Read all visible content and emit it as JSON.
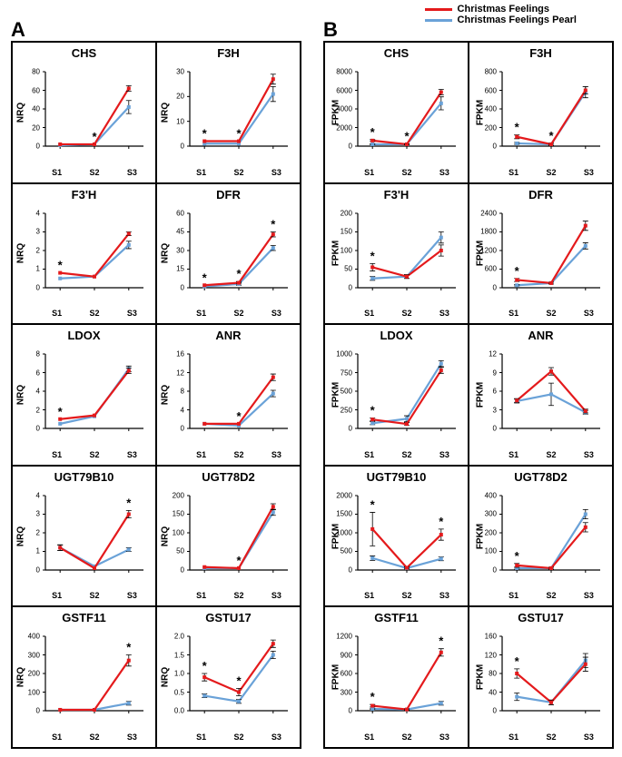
{
  "legend": {
    "series1": {
      "label": "Christmas Feelings",
      "color": "#e41a1c"
    },
    "series2": {
      "label": "Christmas Feelings Pearl",
      "color": "#6aa2d8"
    }
  },
  "panelLabels": {
    "A": "A",
    "B": "B"
  },
  "x_categories": [
    "S1",
    "S2",
    "S3"
  ],
  "panels": {
    "A": {
      "ylabel": "NRQ",
      "plots": [
        {
          "title": "CHS",
          "ymax": 80,
          "ystep": 20,
          "red": [
            2,
            2,
            62
          ],
          "blue": [
            1,
            2,
            42
          ],
          "err_red": [
            0,
            0,
            3
          ],
          "err_blue": [
            0,
            0,
            7
          ],
          "sig": [
            false,
            true,
            false
          ]
        },
        {
          "title": "F3H",
          "ymax": 30,
          "ystep": 10,
          "red": [
            2,
            2,
            27
          ],
          "blue": [
            1,
            1,
            21
          ],
          "err_red": [
            0,
            0,
            2
          ],
          "err_blue": [
            0,
            0,
            3
          ],
          "sig": [
            true,
            true,
            false
          ]
        },
        {
          "title": "F3'H",
          "ymax": 4,
          "ystep": 1,
          "red": [
            0.8,
            0.6,
            2.9
          ],
          "blue": [
            0.5,
            0.6,
            2.3
          ],
          "err_red": [
            0,
            0,
            0.1
          ],
          "err_blue": [
            0,
            0,
            0.2
          ],
          "sig": [
            true,
            false,
            false
          ]
        },
        {
          "title": "DFR",
          "ymax": 60,
          "ystep": 15,
          "red": [
            2,
            4,
            43
          ],
          "blue": [
            1,
            3,
            32
          ],
          "err_red": [
            0,
            1,
            2
          ],
          "err_blue": [
            0,
            1,
            2
          ],
          "sig": [
            true,
            true,
            true
          ]
        },
        {
          "title": "LDOX",
          "ymax": 8,
          "ystep": 2,
          "red": [
            1.0,
            1.4,
            6.2
          ],
          "blue": [
            0.5,
            1.3,
            6.4
          ],
          "err_red": [
            0,
            0,
            0.3
          ],
          "err_blue": [
            0,
            0,
            0.3
          ],
          "sig": [
            true,
            false,
            false
          ]
        },
        {
          "title": "ANR",
          "ymax": 16,
          "ystep": 4,
          "red": [
            1.0,
            1.0,
            11
          ],
          "blue": [
            1.0,
            0.6,
            7.5
          ],
          "err_red": [
            0,
            0,
            0.7
          ],
          "err_blue": [
            0,
            0,
            0.7
          ],
          "sig": [
            false,
            true,
            false
          ]
        },
        {
          "title": "UGT79B10",
          "ymax": 4,
          "ystep": 1,
          "red": [
            1.2,
            0.1,
            3.0
          ],
          "blue": [
            1.2,
            0.2,
            1.1
          ],
          "err_red": [
            0.15,
            0,
            0.2
          ],
          "err_blue": [
            0.15,
            0,
            0.1
          ],
          "sig": [
            false,
            false,
            true
          ]
        },
        {
          "title": "UGT78D2",
          "ymax": 200,
          "ystep": 50,
          "red": [
            8,
            5,
            170
          ],
          "blue": [
            5,
            5,
            155
          ],
          "err_red": [
            0,
            0,
            8
          ],
          "err_blue": [
            0,
            0,
            8
          ],
          "sig": [
            false,
            true,
            false
          ]
        },
        {
          "title": "GSTF11",
          "ymax": 400,
          "ystep": 100,
          "red": [
            5,
            5,
            270
          ],
          "blue": [
            5,
            5,
            40
          ],
          "err_red": [
            0,
            0,
            30
          ],
          "err_blue": [
            0,
            0,
            10
          ],
          "sig": [
            false,
            false,
            true
          ]
        },
        {
          "title": "GSTU17",
          "ymax": 2.0,
          "ystep": 0.5,
          "red": [
            0.9,
            0.5,
            1.8
          ],
          "blue": [
            0.4,
            0.25,
            1.5
          ],
          "err_red": [
            0.1,
            0.1,
            0.1
          ],
          "err_blue": [
            0.05,
            0.05,
            0.1
          ],
          "sig": [
            true,
            true,
            false
          ]
        }
      ]
    },
    "B": {
      "ylabel": "FPKM",
      "plots": [
        {
          "title": "CHS",
          "ymax": 8000,
          "ystep": 2000,
          "red": [
            600,
            200,
            5800
          ],
          "blue": [
            200,
            200,
            4600
          ],
          "err_red": [
            100,
            50,
            300
          ],
          "err_blue": [
            50,
            50,
            700
          ],
          "sig": [
            true,
            true,
            false
          ]
        },
        {
          "title": "F3H",
          "ymax": 800,
          "ystep": 200,
          "red": [
            100,
            20,
            600
          ],
          "blue": [
            30,
            20,
            580
          ],
          "err_red": [
            20,
            10,
            40
          ],
          "err_blue": [
            10,
            10,
            60
          ],
          "sig": [
            true,
            true,
            false
          ]
        },
        {
          "title": "F3'H",
          "ymax": 200,
          "ystep": 50,
          "red": [
            55,
            30,
            100
          ],
          "blue": [
            25,
            30,
            135
          ],
          "err_red": [
            10,
            5,
            15
          ],
          "err_blue": [
            5,
            5,
            15
          ],
          "sig": [
            true,
            false,
            false
          ]
        },
        {
          "title": "DFR",
          "ymax": 2400,
          "ystep": 600,
          "red": [
            250,
            150,
            2000
          ],
          "blue": [
            80,
            150,
            1350
          ],
          "err_red": [
            50,
            30,
            150
          ],
          "err_blue": [
            20,
            30,
            100
          ],
          "sig": [
            true,
            false,
            false
          ]
        },
        {
          "title": "LDOX",
          "ymax": 1000,
          "ystep": 250,
          "red": [
            120,
            60,
            780
          ],
          "blue": [
            70,
            130,
            870
          ],
          "err_red": [
            20,
            20,
            40
          ],
          "err_blue": [
            20,
            40,
            40
          ],
          "sig": [
            true,
            false,
            false
          ]
        },
        {
          "title": "ANR",
          "ymax": 12,
          "ystep": 3,
          "red": [
            4.5,
            9.2,
            2.8
          ],
          "blue": [
            4.4,
            5.5,
            2.6
          ],
          "err_red": [
            0.3,
            0.6,
            0.3
          ],
          "err_blue": [
            0.3,
            1.8,
            0.3
          ],
          "sig": [
            false,
            false,
            false
          ]
        },
        {
          "title": "UGT79B10",
          "ymax": 2000,
          "ystep": 500,
          "red": [
            1100,
            60,
            950
          ],
          "blue": [
            320,
            50,
            300
          ],
          "err_red": [
            450,
            30,
            150
          ],
          "err_blue": [
            60,
            20,
            50
          ],
          "sig": [
            true,
            false,
            true
          ]
        },
        {
          "title": "UGT78D2",
          "ymax": 400,
          "ystep": 100,
          "red": [
            25,
            10,
            230
          ],
          "blue": [
            10,
            10,
            300
          ],
          "err_red": [
            10,
            5,
            25
          ],
          "err_blue": [
            5,
            5,
            25
          ],
          "sig": [
            true,
            false,
            false
          ]
        },
        {
          "title": "GSTF11",
          "ymax": 1200,
          "ystep": 300,
          "red": [
            80,
            20,
            940
          ],
          "blue": [
            30,
            20,
            120
          ],
          "err_red": [
            20,
            10,
            60
          ],
          "err_blue": [
            10,
            10,
            30
          ],
          "sig": [
            true,
            false,
            true
          ]
        },
        {
          "title": "GSTU17",
          "ymax": 160,
          "ystep": 40,
          "red": [
            80,
            18,
            100
          ],
          "blue": [
            30,
            18,
            108
          ],
          "err_red": [
            10,
            5,
            15
          ],
          "err_blue": [
            8,
            5,
            15
          ],
          "sig": [
            true,
            false,
            false
          ]
        }
      ]
    }
  },
  "style": {
    "line_width": 2.2,
    "marker_size": 4,
    "axis_color": "#000000",
    "bg": "#ffffff"
  }
}
